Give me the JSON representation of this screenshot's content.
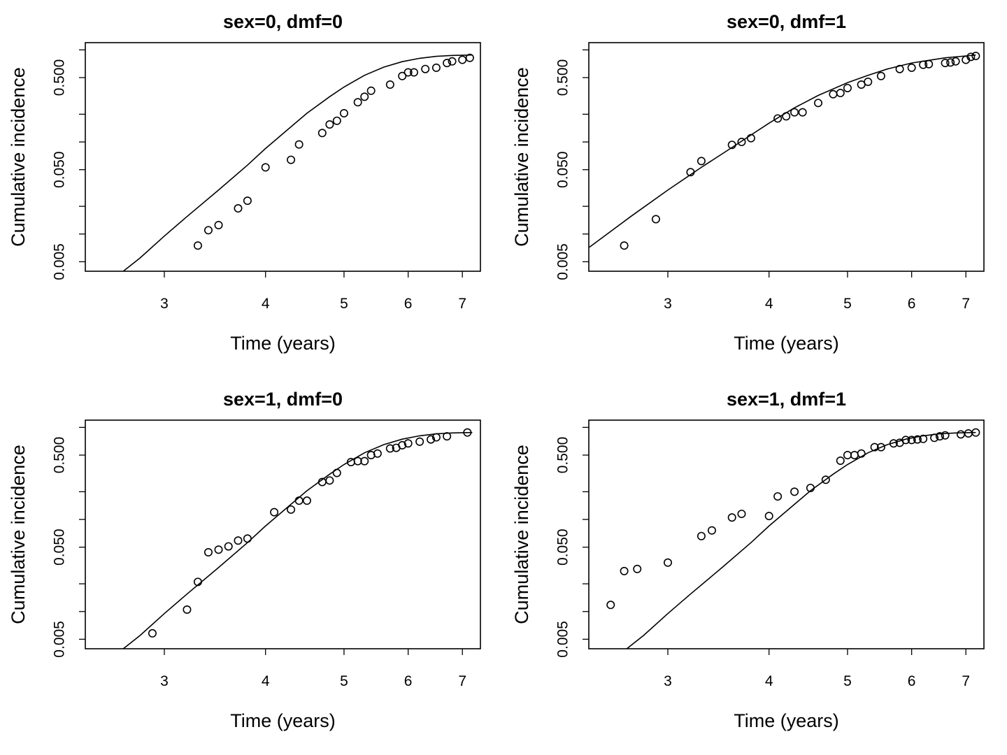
{
  "chart_data": [
    {
      "type": "scatter",
      "title": "sex=0, dmf=0",
      "xlabel": "Time (years)",
      "ylabel": "Cumulative incidence",
      "x_scale": "log",
      "y_scale": "log",
      "xlim": [
        2.4,
        7.2
      ],
      "ylim": [
        0.004,
        1.0
      ],
      "x_ticks": [
        "3",
        "4",
        "5",
        "6",
        "7"
      ],
      "y_tick_labels": [
        "0.005",
        "0.050",
        "0.500"
      ],
      "grid": false,
      "series": [
        {
          "kind": "points",
          "x": [
            3.3,
            3.4,
            3.5,
            3.7,
            3.8,
            4.0,
            4.3,
            4.4,
            4.7,
            4.8,
            4.9,
            5.0,
            5.2,
            5.3,
            5.4,
            5.7,
            5.9,
            6.0,
            6.1,
            6.3,
            6.5,
            6.7,
            6.8,
            7.0,
            7.15
          ],
          "y": [
            0.0075,
            0.011,
            0.0125,
            0.019,
            0.023,
            0.053,
            0.064,
            0.094,
            0.125,
            0.155,
            0.17,
            0.205,
            0.27,
            0.31,
            0.36,
            0.42,
            0.52,
            0.57,
            0.57,
            0.62,
            0.64,
            0.72,
            0.75,
            0.78,
            0.82
          ]
        },
        {
          "kind": "line",
          "x": [
            2.5,
            2.8,
            3.0,
            3.2,
            3.5,
            3.8,
            4.0,
            4.3,
            4.5,
            4.8,
            5.0,
            5.3,
            5.6,
            5.9,
            6.2,
            6.5,
            6.8,
            7.2
          ],
          "y": [
            0.0025,
            0.0055,
            0.0095,
            0.0155,
            0.03,
            0.056,
            0.085,
            0.146,
            0.205,
            0.31,
            0.395,
            0.53,
            0.65,
            0.745,
            0.81,
            0.85,
            0.87,
            0.88
          ]
        }
      ]
    },
    {
      "type": "scatter",
      "title": "sex=0, dmf=1",
      "xlabel": "Time (years)",
      "ylabel": "Cumulative incidence",
      "x_scale": "log",
      "y_scale": "log",
      "xlim": [
        2.4,
        7.2
      ],
      "ylim": [
        0.004,
        1.0
      ],
      "x_ticks": [
        "3",
        "4",
        "5",
        "6",
        "7"
      ],
      "y_tick_labels": [
        "0.005",
        "0.050",
        "0.500"
      ],
      "grid": false,
      "series": [
        {
          "kind": "points",
          "x": [
            2.65,
            2.9,
            3.2,
            3.3,
            3.6,
            3.7,
            3.8,
            4.1,
            4.2,
            4.3,
            4.4,
            4.6,
            4.8,
            4.9,
            5.0,
            5.2,
            5.3,
            5.5,
            5.8,
            6.0,
            6.2,
            6.3,
            6.6,
            6.7,
            6.8,
            7.0,
            7.1,
            7.2
          ],
          "y": [
            0.0075,
            0.0145,
            0.047,
            0.062,
            0.093,
            0.1,
            0.11,
            0.18,
            0.19,
            0.21,
            0.21,
            0.265,
            0.33,
            0.34,
            0.385,
            0.42,
            0.45,
            0.52,
            0.62,
            0.64,
            0.69,
            0.7,
            0.72,
            0.73,
            0.75,
            0.78,
            0.84,
            0.86
          ]
        },
        {
          "kind": "line",
          "x": [
            2.4,
            2.7,
            3.0,
            3.3,
            3.6,
            4.0,
            4.3,
            4.6,
            5.0,
            5.3,
            5.6,
            6.0,
            6.3,
            6.6,
            7.0,
            7.2
          ],
          "y": [
            0.0072,
            0.0155,
            0.03,
            0.053,
            0.087,
            0.16,
            0.235,
            0.32,
            0.44,
            0.53,
            0.62,
            0.72,
            0.77,
            0.82,
            0.86,
            0.88
          ]
        }
      ]
    },
    {
      "type": "scatter",
      "title": "sex=1, dmf=0",
      "xlabel": "Time (years)",
      "ylabel": "Cumulative incidence",
      "x_scale": "log",
      "y_scale": "log",
      "xlim": [
        2.4,
        7.2
      ],
      "ylim": [
        0.004,
        1.0
      ],
      "x_ticks": [
        "3",
        "4",
        "5",
        "6",
        "7"
      ],
      "y_tick_labels": [
        "0.005",
        "0.050",
        "0.500"
      ],
      "grid": false,
      "series": [
        {
          "kind": "points",
          "x": [
            2.9,
            3.2,
            3.3,
            3.4,
            3.5,
            3.6,
            3.7,
            3.8,
            4.1,
            4.3,
            4.4,
            4.5,
            4.7,
            4.8,
            4.9,
            5.1,
            5.2,
            5.3,
            5.4,
            5.5,
            5.7,
            5.8,
            5.9,
            6.0,
            6.2,
            6.4,
            6.5,
            6.7,
            7.1
          ],
          "y": [
            0.0058,
            0.0105,
            0.021,
            0.044,
            0.047,
            0.051,
            0.059,
            0.062,
            0.12,
            0.128,
            0.16,
            0.16,
            0.255,
            0.265,
            0.32,
            0.42,
            0.43,
            0.43,
            0.5,
            0.52,
            0.59,
            0.6,
            0.64,
            0.67,
            0.7,
            0.74,
            0.78,
            0.8,
            0.88
          ]
        },
        {
          "kind": "line",
          "x": [
            2.5,
            2.8,
            3.0,
            3.2,
            3.5,
            3.8,
            4.0,
            4.3,
            4.5,
            4.8,
            5.0,
            5.3,
            5.6,
            5.9,
            6.2,
            6.5,
            6.8,
            7.2
          ],
          "y": [
            0.0025,
            0.0055,
            0.0095,
            0.0155,
            0.03,
            0.056,
            0.085,
            0.146,
            0.205,
            0.31,
            0.395,
            0.53,
            0.65,
            0.745,
            0.81,
            0.85,
            0.87,
            0.88
          ]
        }
      ]
    },
    {
      "type": "scatter",
      "title": "sex=1, dmf=1",
      "xlabel": "Time (years)",
      "ylabel": "Cumulative incidence",
      "x_scale": "log",
      "y_scale": "log",
      "xlim": [
        2.4,
        7.2
      ],
      "ylim": [
        0.004,
        1.0
      ],
      "x_ticks": [
        "3",
        "4",
        "5",
        "6",
        "7"
      ],
      "y_tick_labels": [
        "0.005",
        "0.050",
        "0.500"
      ],
      "grid": false,
      "series": [
        {
          "kind": "points",
          "x": [
            2.55,
            2.65,
            2.75,
            3.0,
            3.3,
            3.4,
            3.6,
            3.7,
            4.0,
            4.1,
            4.3,
            4.5,
            4.7,
            4.9,
            5.0,
            5.1,
            5.2,
            5.4,
            5.5,
            5.7,
            5.8,
            5.9,
            6.0,
            6.1,
            6.2,
            6.4,
            6.5,
            6.6,
            6.9,
            7.05,
            7.2
          ],
          "y": [
            0.0118,
            0.0275,
            0.029,
            0.034,
            0.066,
            0.076,
            0.105,
            0.115,
            0.109,
            0.178,
            0.2,
            0.22,
            0.27,
            0.435,
            0.5,
            0.5,
            0.52,
            0.61,
            0.61,
            0.67,
            0.68,
            0.73,
            0.73,
            0.74,
            0.75,
            0.77,
            0.8,
            0.82,
            0.84,
            0.86,
            0.88
          ]
        },
        {
          "kind": "line",
          "x": [
            2.5,
            2.8,
            3.0,
            3.2,
            3.5,
            3.8,
            4.0,
            4.3,
            4.5,
            4.8,
            5.0,
            5.3,
            5.6,
            5.9,
            6.2,
            6.5,
            6.8,
            7.2
          ],
          "y": [
            0.0025,
            0.0055,
            0.0095,
            0.0155,
            0.03,
            0.056,
            0.085,
            0.146,
            0.205,
            0.31,
            0.395,
            0.53,
            0.65,
            0.745,
            0.81,
            0.85,
            0.87,
            0.88
          ]
        }
      ]
    }
  ]
}
